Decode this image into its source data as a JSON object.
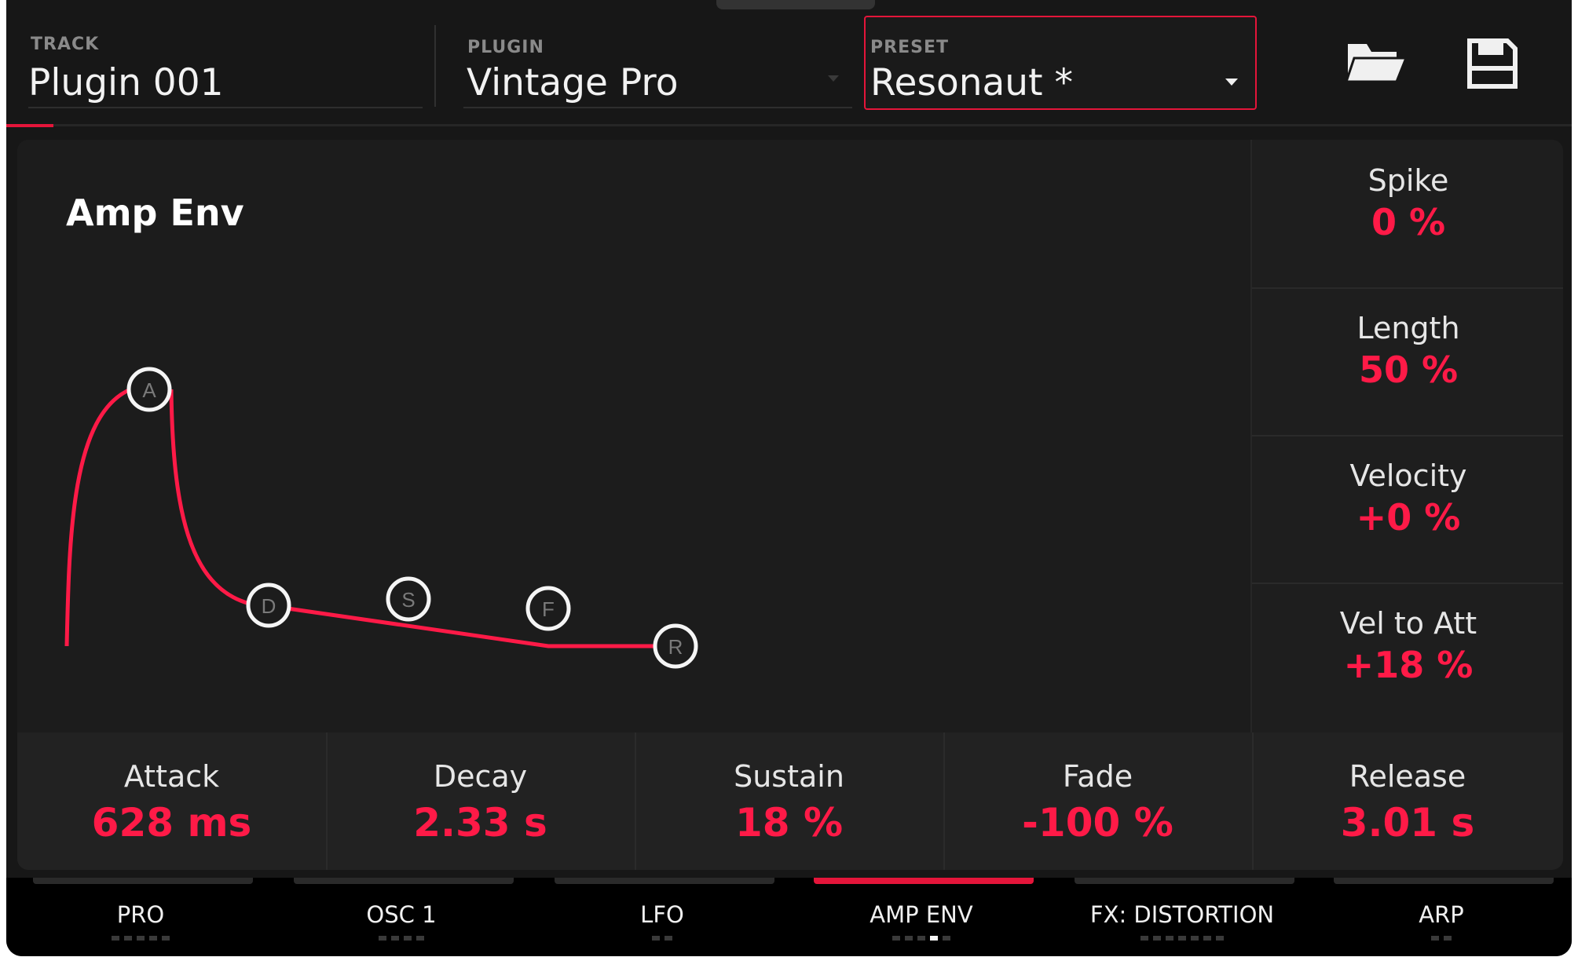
{
  "header": {
    "track": {
      "label": "TRACK",
      "value": "Plugin 001"
    },
    "plugin": {
      "label": "PLUGIN",
      "value": "Vintage Pro"
    },
    "preset": {
      "label": "PRESET",
      "value": "Resonaut *"
    },
    "icons": [
      "folder-open-icon",
      "save-icon"
    ]
  },
  "envelope": {
    "title": "Amp Env",
    "nodes": [
      "A",
      "D",
      "S",
      "F",
      "R"
    ]
  },
  "right_params": [
    {
      "label": "Spike",
      "value": "0 %"
    },
    {
      "label": "Length",
      "value": "50 %"
    },
    {
      "label": "Velocity",
      "value": "+0 %"
    },
    {
      "label": "Vel to Att",
      "value": "+18 %"
    }
  ],
  "bottom_params": [
    {
      "label": "Attack",
      "value": "628 ms"
    },
    {
      "label": "Decay",
      "value": "2.33 s"
    },
    {
      "label": "Sustain",
      "value": "18 %"
    },
    {
      "label": "Fade",
      "value": "-100 %"
    },
    {
      "label": "Release",
      "value": "3.01 s"
    }
  ],
  "tabs": [
    {
      "label": "PRO",
      "pages": 5,
      "current": 0
    },
    {
      "label": "OSC 1",
      "pages": 4,
      "current": 0
    },
    {
      "label": "LFO",
      "pages": 2,
      "current": 0
    },
    {
      "label": "AMP ENV",
      "pages": 5,
      "current": 4,
      "active": true
    },
    {
      "label": "FX: DISTORTION",
      "pages": 7,
      "current": 0
    },
    {
      "label": "ARP",
      "pages": 2,
      "current": 0
    }
  ],
  "colors": {
    "accent": "#e4153a",
    "value_red": "#ff1a47",
    "background": "#171717"
  }
}
